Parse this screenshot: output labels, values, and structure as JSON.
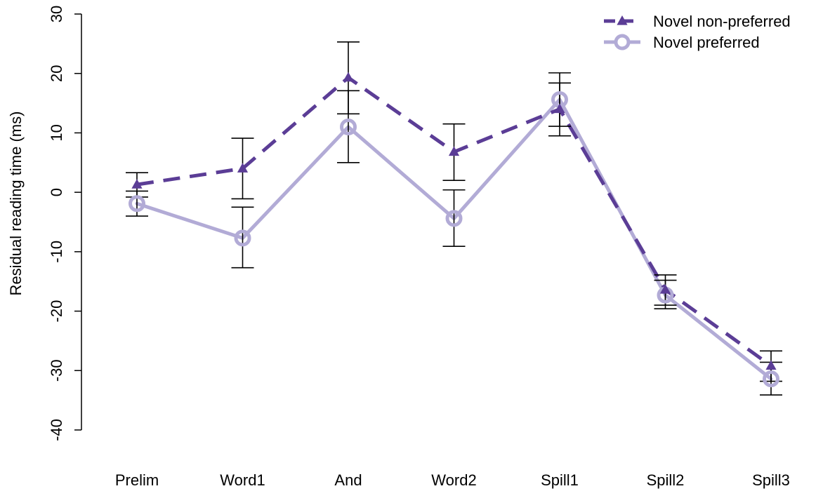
{
  "chart_data": {
    "type": "line",
    "title": "",
    "xlabel": "",
    "ylabel": "Residual reading time (ms)",
    "ylim": [
      -40,
      30
    ],
    "yticks": [
      30,
      20,
      10,
      0,
      -10,
      -20,
      -30,
      -40
    ],
    "categories": [
      "Prelim",
      "Word1",
      "And",
      "Word2",
      "Spill1",
      "Spill2",
      "Spill3"
    ],
    "grid": false,
    "legend_position": "top-right",
    "series": [
      {
        "name": "Novel non-preferred",
        "color": "#5b3d96",
        "line_style": "dashed",
        "marker": "filled-triangle",
        "values": [
          1.3,
          4.0,
          19.3,
          6.8,
          14.0,
          -16.4,
          -29.2
        ],
        "error_upper": [
          3.3,
          9.1,
          25.3,
          11.5,
          18.4,
          -13.9,
          -26.7
        ],
        "error_lower": [
          -0.8,
          -1.1,
          13.2,
          2.0,
          9.5,
          -19.0,
          -31.8
        ]
      },
      {
        "name": "Novel preferred",
        "color": "#b2abd6",
        "line_style": "solid",
        "marker": "open-circle",
        "values": [
          -1.9,
          -7.7,
          11.0,
          -4.4,
          15.6,
          -17.3,
          -31.4
        ],
        "error_upper": [
          0.2,
          -2.5,
          17.1,
          0.4,
          20.1,
          -14.8,
          -28.6
        ],
        "error_lower": [
          -4.0,
          -12.7,
          5.0,
          -9.1,
          11.1,
          -19.6,
          -34.1
        ]
      }
    ]
  }
}
